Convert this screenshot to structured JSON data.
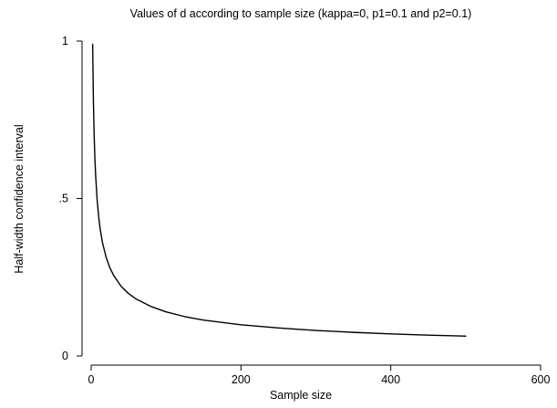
{
  "chart_data": {
    "type": "line",
    "title": "Values of d according to sample size (kappa=0, p1=0.1 and p2=0.1)",
    "xlabel": "Sample size",
    "ylabel": "Half-width confidence interval",
    "xlim": [
      0,
      600
    ],
    "ylim": [
      0,
      1
    ],
    "x_ticks": [
      0,
      200,
      400,
      600
    ],
    "x_tick_labels": [
      "0",
      "200",
      "400",
      "600"
    ],
    "y_ticks": [
      0,
      0.5,
      1
    ],
    "y_tick_labels": [
      "0",
      ".5",
      "1"
    ],
    "grid": false,
    "legend": "none",
    "series": [
      {
        "color": "#000000",
        "x": [
          2,
          3,
          4,
          5,
          6,
          8,
          10,
          12,
          15,
          20,
          25,
          30,
          40,
          50,
          60,
          80,
          100,
          125,
          150,
          200,
          250,
          300,
          350,
          400,
          450,
          500
        ],
        "y": [
          0.99,
          0.808,
          0.7,
          0.626,
          0.572,
          0.495,
          0.443,
          0.404,
          0.361,
          0.313,
          0.28,
          0.256,
          0.221,
          0.198,
          0.181,
          0.157,
          0.14,
          0.125,
          0.114,
          0.099,
          0.089,
          0.081,
          0.075,
          0.07,
          0.066,
          0.063
        ]
      }
    ]
  }
}
